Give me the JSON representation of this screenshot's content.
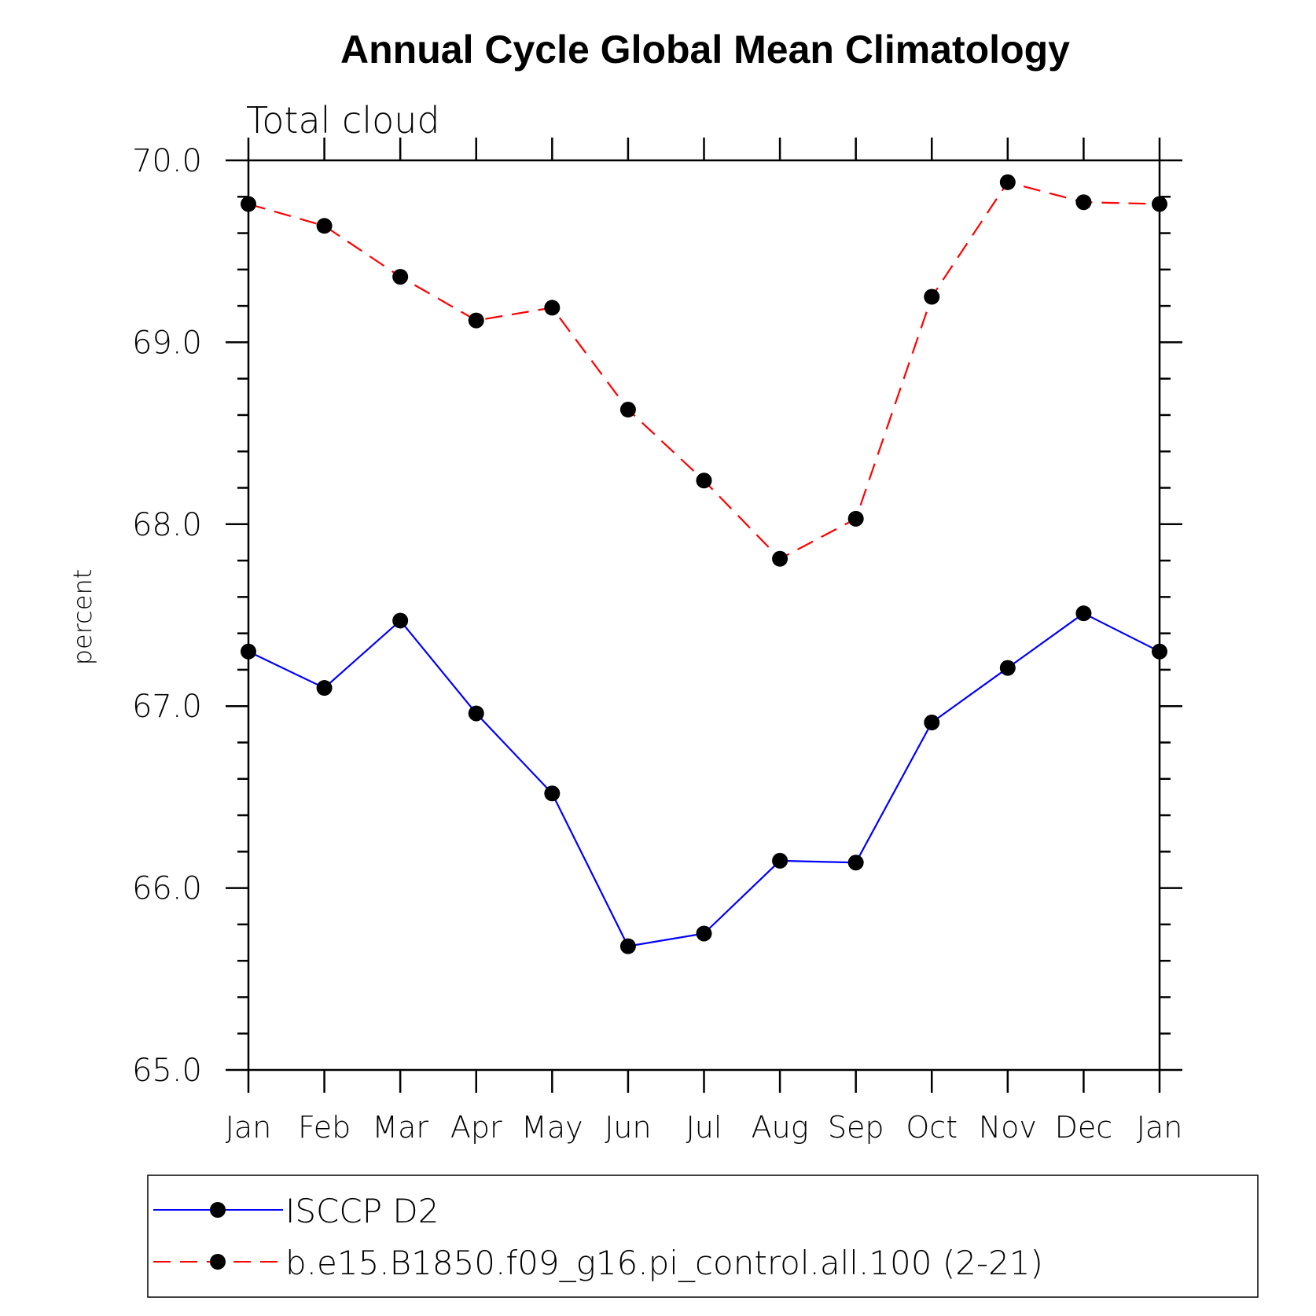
{
  "chart_data": {
    "type": "line",
    "title": "Annual Cycle Global Mean Climatology",
    "subtitle": "Total cloud",
    "ylabel": "percent",
    "xlabel": "",
    "ylim": [
      65.0,
      70.0
    ],
    "yticks": [
      "65.0",
      "66.0",
      "67.0",
      "68.0",
      "69.0",
      "70.0"
    ],
    "categories": [
      "Jan",
      "Feb",
      "Mar",
      "Apr",
      "May",
      "Jun",
      "Jul",
      "Aug",
      "Sep",
      "Oct",
      "Nov",
      "Dec",
      "Jan"
    ],
    "grid": false,
    "legend_position": "bottom",
    "series": [
      {
        "name": "ISCCP D2",
        "color": "#0000ff",
        "style": "solid",
        "marker": "filled-circle",
        "values": [
          67.3,
          67.1,
          67.47,
          66.96,
          66.52,
          65.68,
          65.75,
          66.15,
          66.14,
          66.91,
          67.21,
          67.51,
          67.3
        ]
      },
      {
        "name": "b.e15.B1850.f09_g16.pi_control.all.100 (2-21)",
        "color": "#ff0000",
        "style": "dashed",
        "marker": "filled-circle",
        "values": [
          69.76,
          69.64,
          69.36,
          69.12,
          69.19,
          68.63,
          68.24,
          67.81,
          68.03,
          69.25,
          69.88,
          69.77,
          69.76
        ]
      }
    ]
  }
}
